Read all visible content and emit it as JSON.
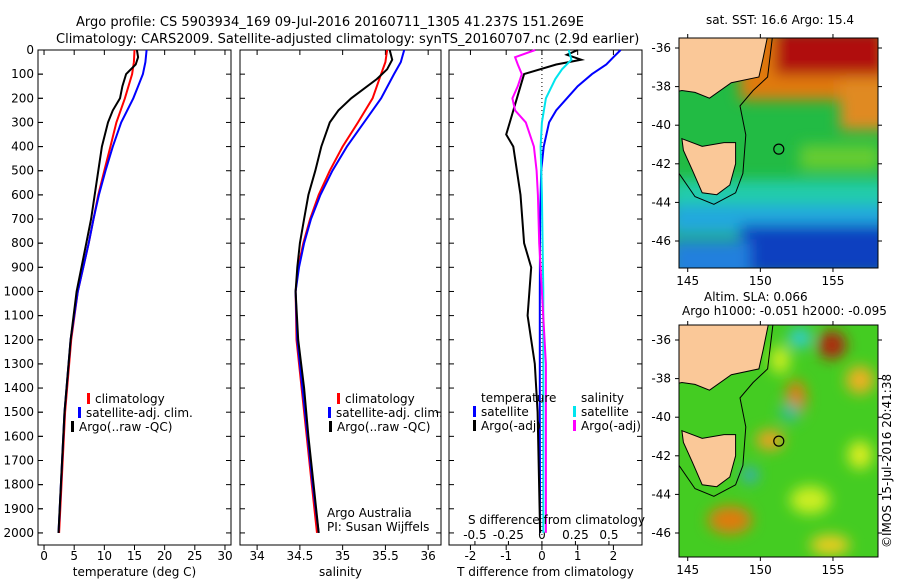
{
  "title": {
    "line1": "Argo profile: CS 5903934_169 09-Jul-2016 20160711_1305 41.237S 151.269E",
    "line2": "Climatology: CARS2009. Satellite-adjusted climatology: synTS_20160707.nc (2.9d earlier)"
  },
  "colors": {
    "climatology": "#ff0000",
    "satellite": "#0000ff",
    "argo": "#000000",
    "sal_satellite": "#00e5ee",
    "sal_argo": "#ff00ff",
    "land": "#fac898"
  },
  "chart_data": [
    {
      "id": "temperature",
      "type": "line",
      "xlabel": "temperature (deg C)",
      "xlim": [
        -1,
        31
      ],
      "xticks": [
        0,
        5,
        10,
        15,
        20,
        25,
        30
      ],
      "ylim": [
        0,
        2050
      ],
      "yticks": [
        0,
        100,
        200,
        300,
        400,
        500,
        600,
        700,
        800,
        900,
        1000,
        1100,
        1200,
        1300,
        1400,
        1500,
        1600,
        1700,
        1800,
        1900,
        2000
      ],
      "legend": [
        "climatology",
        "satellite-adj. clim.",
        "Argo(..raw -QC)"
      ],
      "series": [
        {
          "name": "climatology",
          "color": "#ff0000",
          "depth": [
            0,
            50,
            100,
            150,
            200,
            300,
            400,
            500,
            600,
            700,
            800,
            1000,
            1200,
            1500,
            1800,
            2000
          ],
          "values": [
            15,
            14.9,
            14.6,
            14,
            13.4,
            12,
            11,
            10,
            9,
            8.2,
            7.4,
            5.6,
            4.5,
            3.5,
            2.9,
            2.5
          ]
        },
        {
          "name": "satellite-adj. clim.",
          "color": "#0000ff",
          "depth": [
            0,
            50,
            100,
            150,
            200,
            300,
            400,
            500,
            600,
            700,
            800,
            1000,
            1200,
            1500,
            1800,
            2000
          ],
          "values": [
            17,
            16.8,
            16.4,
            15.6,
            14.8,
            12.8,
            11.4,
            10.2,
            9.1,
            8.2,
            7.4,
            5.6,
            4.4,
            3.4,
            2.8,
            2.4
          ]
        },
        {
          "name": "Argo(..raw -QC)",
          "color": "#000000",
          "depth": [
            0,
            30,
            60,
            100,
            150,
            200,
            250,
            300,
            400,
            500,
            600,
            700,
            800,
            1000,
            1200,
            1500,
            1800,
            2000
          ],
          "values": [
            15.4,
            15.6,
            15.2,
            13.6,
            13,
            12.6,
            11.4,
            10.6,
            9.6,
            9,
            8.4,
            7.8,
            7,
            5.4,
            4.4,
            3.4,
            2.8,
            2.4
          ]
        }
      ]
    },
    {
      "id": "salinity",
      "type": "line",
      "xlabel": "salinity",
      "xlim": [
        33.8,
        36.15
      ],
      "xticks": [
        34,
        34.5,
        35,
        35.5,
        36
      ],
      "ylim": [
        0,
        2050
      ],
      "legend": [
        "climatology",
        "satellite-adj. clim.",
        "Argo(..raw -QC)"
      ],
      "annotation": [
        "Argo Australia",
        "PI: Susan Wijffels"
      ],
      "series": [
        {
          "name": "climatology",
          "color": "#ff0000",
          "depth": [
            0,
            50,
            100,
            200,
            300,
            400,
            500,
            600,
            700,
            800,
            900,
            1000,
            1200,
            1400,
            1600,
            1800,
            2000
          ],
          "values": [
            35.52,
            35.5,
            35.45,
            35.35,
            35.18,
            35.0,
            34.85,
            34.72,
            34.62,
            34.54,
            34.48,
            34.45,
            34.46,
            34.52,
            34.58,
            34.64,
            34.7
          ]
        },
        {
          "name": "satellite-adj. clim.",
          "color": "#0000ff",
          "depth": [
            0,
            50,
            100,
            200,
            300,
            400,
            500,
            600,
            700,
            800,
            900,
            1000,
            1200,
            1400,
            1600,
            1800,
            2000
          ],
          "values": [
            35.72,
            35.68,
            35.6,
            35.45,
            35.25,
            35.05,
            34.88,
            34.74,
            34.63,
            34.55,
            34.49,
            34.45,
            34.47,
            34.53,
            34.59,
            34.65,
            34.72
          ]
        },
        {
          "name": "Argo(..raw -QC)",
          "color": "#000000",
          "depth": [
            0,
            40,
            80,
            120,
            200,
            250,
            300,
            400,
            500,
            600,
            700,
            800,
            900,
            1000,
            1200,
            1400,
            1600,
            1800,
            2000
          ],
          "values": [
            35.55,
            35.58,
            35.52,
            35.4,
            35.1,
            34.95,
            34.85,
            34.75,
            34.68,
            34.6,
            34.55,
            34.5,
            34.47,
            34.45,
            34.48,
            34.55,
            34.6,
            34.66,
            34.72
          ]
        }
      ]
    },
    {
      "id": "difference",
      "type": "line",
      "xlabel": "T difference from climatology",
      "xlim": [
        -2.6,
        2.8
      ],
      "xticks": [
        -2,
        -1,
        0,
        1,
        2
      ],
      "x2label": "S difference from climatology",
      "x2ticks": [
        -0.5,
        -0.25,
        0,
        0.25,
        0.5
      ],
      "x2tick_labels": [
        "-0.5",
        "-0.25",
        "0",
        "0.25",
        "0.5"
      ],
      "ylim": [
        0,
        2050
      ],
      "legend_temperature": {
        "title": "temperature",
        "items": [
          "satellite",
          "Argo(-adj)"
        ]
      },
      "legend_salinity": {
        "title": "salinity",
        "items": [
          "satellite",
          "Argo(-adj)"
        ]
      },
      "series": [
        {
          "name": "T satellite",
          "axis": "T",
          "color": "#0000ff",
          "depth": [
            0,
            30,
            60,
            100,
            150,
            200,
            250,
            300,
            400,
            500,
            700,
            1000,
            1500,
            2000
          ],
          "values": [
            2.2,
            2.0,
            1.8,
            1.4,
            1.0,
            0.7,
            0.4,
            0.2,
            0.05,
            -0.02,
            -0.05,
            -0.06,
            -0.06,
            -0.05
          ]
        },
        {
          "name": "T Argo(-adj)",
          "axis": "T",
          "color": "#000000",
          "depth": [
            0,
            20,
            40,
            60,
            100,
            150,
            200,
            300,
            350,
            400,
            500,
            600,
            700,
            800,
            900,
            1000,
            1100,
            1200,
            1300,
            1500,
            1800,
            2000
          ],
          "values": [
            1.0,
            0.7,
            1.1,
            0.4,
            -0.5,
            -0.6,
            -0.7,
            -0.9,
            -1.0,
            -0.8,
            -0.7,
            -0.6,
            -0.55,
            -0.5,
            -0.3,
            -0.35,
            -0.4,
            -0.3,
            -0.2,
            -0.12,
            -0.08,
            -0.05
          ]
        },
        {
          "name": "S satellite",
          "axis": "S",
          "color": "#00e5ee",
          "depth": [
            0,
            40,
            80,
            120,
            200,
            300,
            400,
            600,
            1000,
            1500,
            2000
          ],
          "values": [
            0.2,
            0.22,
            0.15,
            0.1,
            0.03,
            0.0,
            -0.01,
            0.0,
            0.01,
            0.01,
            0.01
          ]
        },
        {
          "name": "S Argo(-adj)",
          "axis": "S",
          "color": "#ff00ff",
          "depth": [
            0,
            30,
            60,
            100,
            150,
            200,
            250,
            300,
            400,
            500,
            600,
            800,
            1000,
            1300,
            1600,
            2000
          ],
          "values": [
            -0.05,
            -0.2,
            -0.18,
            -0.15,
            -0.18,
            -0.22,
            -0.2,
            -0.12,
            -0.06,
            -0.04,
            -0.03,
            -0.02,
            0.0,
            0.03,
            0.03,
            0.03
          ]
        }
      ]
    }
  ],
  "map_sst": {
    "title": "sat. SST: 16.6  Argo: 15.4",
    "lon_ticks": [
      145,
      150,
      155
    ],
    "lat_ticks": [
      -36,
      -38,
      -40,
      -42,
      -44,
      -46
    ],
    "lat_tick_labels": [
      "-36",
      "-38",
      "-40",
      "-42",
      "-44",
      "-46"
    ],
    "argo_lon": 151.27,
    "argo_lat": -41.24
  },
  "map_sla": {
    "title1": "Altim. SLA: 0.066",
    "title2": "Argo h1000: -0.051 h2000: -0.095",
    "lon_ticks": [
      145,
      150,
      155
    ],
    "lat_ticks": [
      -36,
      -38,
      -40,
      -42,
      -44,
      -46
    ],
    "lat_tick_labels": [
      "-36",
      "-38",
      "-40",
      "-42",
      "-44",
      "-46"
    ],
    "argo_lon": 151.27,
    "argo_lat": -41.24
  },
  "credit": "©IMOS 15-Jul-2016 20:41:38"
}
